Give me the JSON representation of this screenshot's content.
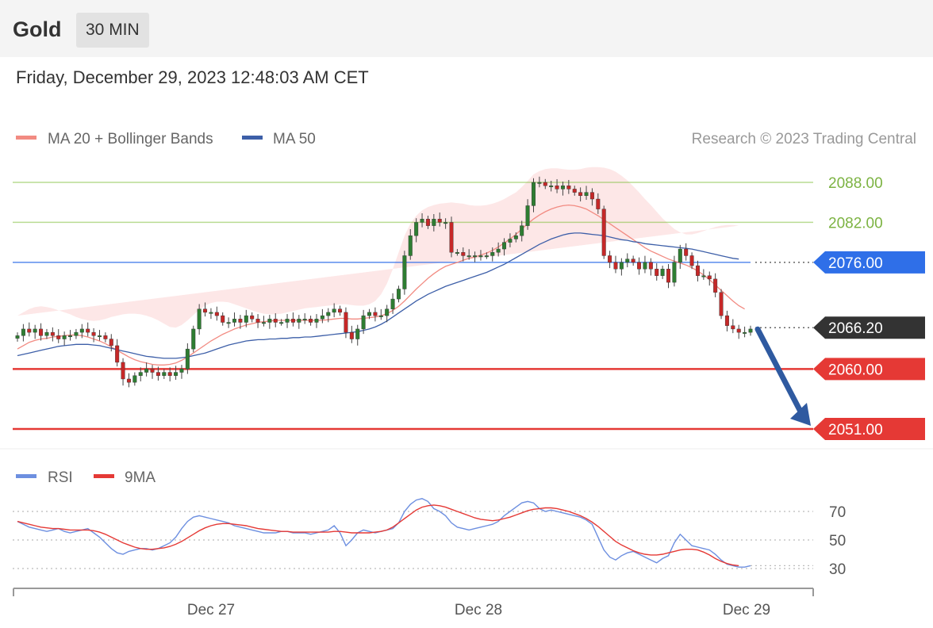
{
  "header": {
    "instrument": "Gold",
    "timeframe": "30 MIN",
    "datetime": "Friday, December 29, 2023 12:48:03 AM CET"
  },
  "legend": {
    "ma20": {
      "label": "MA 20 + Bollinger Bands",
      "color": "#f28b82"
    },
    "ma50": {
      "label": "MA 50",
      "color": "#3d5fa8"
    },
    "copyright": "Research © 2023 Trading Central"
  },
  "rsi_legend": {
    "rsi": {
      "label": "RSI",
      "color": "#6d8fe0"
    },
    "ma9": {
      "label": "9MA",
      "color": "#e53935"
    }
  },
  "chart_data": [
    {
      "type": "candlestick",
      "title": "Gold 30 MIN",
      "x_ticks": [
        "Dec 27",
        "Dec 28",
        "Dec 29"
      ],
      "ylim": [
        2047,
        2091
      ],
      "levels": [
        {
          "value": 2088.0,
          "label": "2088.00",
          "kind": "resistance",
          "color": "#8bc34a"
        },
        {
          "value": 2082.0,
          "label": "2082.00",
          "kind": "resistance",
          "color": "#8bc34a"
        },
        {
          "value": 2076.0,
          "label": "2076.00",
          "kind": "pivot",
          "color": "#2f6fe8"
        },
        {
          "value": 2066.2,
          "label": "2066.20",
          "kind": "last",
          "color": "#333333"
        },
        {
          "value": 2060.0,
          "label": "2060.00",
          "kind": "support",
          "color": "#e53935"
        },
        {
          "value": 2051.0,
          "label": "2051.00",
          "kind": "support",
          "color": "#e53935"
        }
      ],
      "forecast": {
        "from": 2066.2,
        "to": 2051.0,
        "direction": "down",
        "color": "#2f5aa0"
      },
      "colors": {
        "up": "#2e7d32",
        "down": "#c62828",
        "band": "#fde3e3",
        "grid": "#dddddd"
      },
      "closes": [
        2065,
        2066,
        2065.5,
        2066,
        2065,
        2065.5,
        2065,
        2064.5,
        2065,
        2065,
        2065.5,
        2066,
        2065.5,
        2065,
        2065,
        2064.5,
        2063.5,
        2061,
        2058.5,
        2058,
        2059,
        2059.5,
        2060,
        2059.5,
        2059,
        2059.5,
        2059,
        2059.5,
        2060,
        2063,
        2066,
        2069,
        2068.5,
        2068.5,
        2068,
        2067,
        2067,
        2067.5,
        2067,
        2068,
        2067.5,
        2067,
        2067,
        2067.5,
        2067,
        2067,
        2067.5,
        2067,
        2067.5,
        2067.5,
        2067,
        2067.5,
        2068,
        2068.5,
        2069,
        2068.5,
        2065.5,
        2064.5,
        2066,
        2068,
        2068.5,
        2068,
        2068,
        2069,
        2070.5,
        2072,
        2077,
        2080,
        2082,
        2082.5,
        2081.5,
        2082.5,
        2082,
        2082,
        2077.5,
        2077.5,
        2077,
        2077,
        2077,
        2077,
        2077,
        2077.5,
        2078,
        2079,
        2079.5,
        2080,
        2081.5,
        2084.5,
        2088,
        2088,
        2087.5,
        2087.5,
        2087,
        2087.5,
        2087,
        2086.5,
        2086,
        2086.5,
        2085.5,
        2084,
        2077,
        2076,
        2075,
        2076,
        2076.5,
        2076,
        2075,
        2076,
        2075,
        2074,
        2075,
        2073,
        2076,
        2078,
        2077,
        2075.5,
        2074,
        2074,
        2073.5,
        2071.5,
        2068,
        2066.5,
        2066,
        2065.5,
        2065.5,
        2066
      ],
      "ma20": [
        2063,
        2063.5,
        2064,
        2064.3,
        2064.5,
        2064.6,
        2064.8,
        2064.9,
        2065,
        2065.1,
        2065.1,
        2065,
        2064.8,
        2064.5,
        2064.2,
        2063.8,
        2063.3,
        2062.8,
        2062.3,
        2061.8,
        2061.4,
        2061.1,
        2060.9,
        2060.7,
        2060.6,
        2060.6,
        2060.7,
        2060.9,
        2061.3,
        2061.8,
        2062.4,
        2063,
        2063.6,
        2064.2,
        2064.7,
        2065.2,
        2065.6,
        2066,
        2066.3,
        2066.6,
        2066.8,
        2067,
        2067.1,
        2067.2,
        2067.3,
        2067.3,
        2067.3,
        2067.3,
        2067.3,
        2067.3,
        2067.3,
        2067.3,
        2067.3,
        2067.4,
        2067.5,
        2067.6,
        2067.6,
        2067.5,
        2067.5,
        2067.6,
        2067.7,
        2067.8,
        2068,
        2068.3,
        2068.8,
        2069.4,
        2070.2,
        2071.1,
        2072,
        2072.8,
        2073.6,
        2074.3,
        2074.9,
        2075.4,
        2075.7,
        2076,
        2076.3,
        2076.6,
        2076.8,
        2077.1,
        2077.4,
        2077.8,
        2078.3,
        2078.9,
        2079.5,
        2080.2,
        2081,
        2081.8,
        2082.5,
        2083.1,
        2083.6,
        2084,
        2084.3,
        2084.5,
        2084.6,
        2084.5,
        2084.3,
        2084,
        2083.5,
        2083,
        2082.4,
        2081.8,
        2081.2,
        2080.6,
        2080,
        2079.4,
        2078.8,
        2078.2,
        2077.7,
        2077.3,
        2076.9,
        2076.5,
        2076.2,
        2075.9,
        2075.6,
        2075.2,
        2074.7,
        2074.1,
        2073.4,
        2072.6,
        2071.8,
        2071,
        2070.2,
        2069.5,
        2069
      ],
      "ma50": [
        2062,
        2062.2,
        2062.4,
        2062.6,
        2062.8,
        2063,
        2063.2,
        2063.4,
        2063.5,
        2063.6,
        2063.7,
        2063.7,
        2063.7,
        2063.6,
        2063.5,
        2063.3,
        2063.1,
        2062.9,
        2062.7,
        2062.5,
        2062.3,
        2062.1,
        2061.9,
        2061.8,
        2061.7,
        2061.6,
        2061.6,
        2061.6,
        2061.7,
        2061.8,
        2062,
        2062.2,
        2062.4,
        2062.7,
        2063,
        2063.3,
        2063.6,
        2063.8,
        2064,
        2064.2,
        2064.3,
        2064.4,
        2064.4,
        2064.5,
        2064.5,
        2064.6,
        2064.6,
        2064.7,
        2064.7,
        2064.8,
        2064.8,
        2064.9,
        2065,
        2065.1,
        2065.2,
        2065.3,
        2065.4,
        2065.5,
        2065.6,
        2065.8,
        2066,
        2066.3,
        2066.7,
        2067.2,
        2067.8,
        2068.4,
        2069,
        2069.6,
        2070.2,
        2070.7,
        2071.2,
        2071.6,
        2072,
        2072.4,
        2072.7,
        2073,
        2073.3,
        2073.6,
        2073.9,
        2074.2,
        2074.5,
        2074.9,
        2075.3,
        2075.7,
        2076.2,
        2076.7,
        2077.2,
        2077.7,
        2078.2,
        2078.7,
        2079.1,
        2079.5,
        2079.8,
        2080.1,
        2080.3,
        2080.4,
        2080.4,
        2080.3,
        2080.2,
        2080.1,
        2080,
        2079.8,
        2079.6,
        2079.4,
        2079.3,
        2079.1,
        2079,
        2078.8,
        2078.7,
        2078.6,
        2078.5,
        2078.4,
        2078.3,
        2078.2,
        2078.1,
        2078,
        2077.8,
        2077.6,
        2077.4,
        2077.2,
        2077,
        2076.8,
        2076.6,
        2076.5
      ],
      "bb_upper": [
        2068,
        2068.5,
        2069,
        2069.3,
        2069.4,
        2069.3,
        2069.1,
        2068.8,
        2068.5,
        2068.2,
        2067.8,
        2067.5,
        2067.3,
        2067.2,
        2067.3,
        2067.5,
        2067.8,
        2068,
        2068.2,
        2068.3,
        2068.3,
        2068.2,
        2068,
        2067.7,
        2067.3,
        2066.8,
        2066.3,
        2066.2,
        2066.6,
        2067.3,
        2068.1,
        2068.9,
        2069.5,
        2069.9,
        2070.1,
        2070.1,
        2070,
        2069.7,
        2069.4,
        2069.1,
        2068.8,
        2068.5,
        2068.3,
        2068.2,
        2068.2,
        2068.3,
        2068.5,
        2068.7,
        2068.9,
        2069.1,
        2069.2,
        2069.3,
        2069.4,
        2069.5,
        2069.6,
        2069.7,
        2069.7,
        2069.6,
        2069.5,
        2069.5,
        2069.7,
        2070.2,
        2071.2,
        2072.8,
        2075,
        2077.5,
        2080,
        2081.8,
        2083,
        2083.8,
        2084.3,
        2084.6,
        2084.8,
        2084.9,
        2085,
        2084.9,
        2084.8,
        2084.6,
        2084.5,
        2084.5,
        2084.6,
        2084.8,
        2085.1,
        2085.5,
        2086,
        2086.5,
        2087.3,
        2088.2,
        2089.2,
        2089.7,
        2090,
        2090.1,
        2090.1,
        2090,
        2089.9,
        2089.9,
        2090,
        2090.2,
        2090.3,
        2090.3,
        2090.2,
        2090,
        2089.6,
        2089,
        2088.3,
        2087.4,
        2086.5,
        2085.5,
        2084.6,
        2083.6,
        2082.6,
        2081.8,
        2081,
        2080.5,
        2080.2,
        2080.2,
        2080.4,
        2080.7,
        2081,
        2081.3,
        2081.5,
        2081.6,
        2081.6,
        2081.5
      ],
      "bb_lower": [
        2052,
        2054,
        2056,
        2057.5,
        2058.5,
        2059.2,
        2059.8,
        2060.2,
        2060.5,
        2060.8,
        2061,
        2061,
        2060.8,
        2060.4,
        2059.8,
        2059,
        2058,
        2057.1,
        2056.5,
        2056.2,
        2056,
        2055.9,
        2055.8,
        2055.8,
        2056,
        2056.3,
        2056.8,
        2057.5,
        2057.5,
        2056.8,
        2056.2,
        2056,
        2056.2,
        2056.9,
        2057.7,
        2058.6,
        2059.5,
        2060.3,
        2061,
        2061.6,
        2062.1,
        2062.4,
        2062.6,
        2062.8,
        2062.9,
        2063,
        2063,
        2063,
        2063,
        2063,
        2063,
        2063,
        2063,
        2063,
        2063,
        2063.1,
        2063.1,
        2063.1,
        2063.1,
        2063.2,
        2063.3,
        2063.4,
        2063.5,
        2063.4,
        2063,
        2062.2,
        2061.3,
        2060.6,
        2060,
        2059.8,
        2059.7,
        2059.8,
        2060,
        2060.5,
        2061.3,
        2062.3,
        2063.6,
        2065,
        2066.5,
        2068,
        2069.4,
        2070.5,
        2071.5,
        2072.3,
        2073,
        2073.6,
        2074.1,
        2074.5,
        2075,
        2075.5,
        2075.8,
        2076,
        2076,
        2075.8,
        2075.4,
        2074.8,
        2074.1,
        2073.3,
        2072.4,
        2071.5,
        2070.6,
        2069.8,
        2069.3,
        2069,
        2069,
        2069.2,
        2069.5,
        2069.8,
        2070.1,
        2070.3,
        2070.4,
        2070.4,
        2070.2,
        2069.8,
        2069.2,
        2068.3,
        2067.2,
        2066,
        2064.8,
        2063.8,
        2063,
        2062.5,
        2062.3,
        2062.4
      ]
    },
    {
      "type": "line",
      "title": "RSI",
      "y_ticks": [
        70,
        50,
        30
      ],
      "ylim": [
        15,
        85
      ],
      "series": [
        {
          "name": "RSI",
          "values": [
            63,
            61,
            59,
            58,
            57,
            56,
            57,
            58,
            56,
            55,
            56,
            57,
            58,
            55,
            52,
            48,
            44,
            41,
            40,
            42,
            43,
            44,
            44,
            43,
            44,
            46,
            48,
            52,
            58,
            63,
            66,
            67,
            66,
            65,
            64,
            63,
            62,
            60,
            59,
            58,
            57,
            56,
            55,
            55,
            55,
            56,
            56,
            55,
            55,
            55,
            54,
            55,
            56,
            57,
            60,
            55,
            46,
            50,
            55,
            57,
            56,
            55,
            56,
            57,
            58,
            62,
            70,
            75,
            78,
            79,
            77,
            72,
            70,
            67,
            62,
            59,
            58,
            57,
            58,
            59,
            60,
            61,
            63,
            67,
            70,
            73,
            76,
            77,
            76,
            72,
            70,
            71,
            70,
            69,
            68,
            67,
            66,
            64,
            61,
            52,
            43,
            38,
            36,
            39,
            41,
            42,
            40,
            38,
            36,
            34,
            37,
            39,
            48,
            54,
            50,
            46,
            45,
            44,
            43,
            40,
            36,
            33,
            32,
            31,
            31,
            32
          ]
        },
        {
          "name": "9MA",
          "values": [
            63,
            62,
            61,
            60,
            59,
            58.5,
            58,
            58,
            57.5,
            57,
            57,
            57,
            57,
            56.5,
            55.5,
            54,
            52,
            50,
            48,
            46.5,
            45,
            44,
            43.5,
            43.5,
            44,
            44.5,
            45.5,
            47,
            49,
            51.5,
            54,
            56.5,
            58.5,
            60,
            61,
            61.5,
            61.5,
            61,
            60.5,
            60,
            59,
            58,
            57.5,
            57,
            56.5,
            56,
            56,
            55.5,
            55.5,
            55.5,
            55.5,
            55.5,
            55.5,
            55.5,
            56,
            56,
            55.5,
            55,
            55,
            55,
            55,
            55.5,
            56,
            57,
            59,
            62,
            65,
            68,
            71,
            73,
            74,
            74.5,
            74,
            73,
            71.5,
            70,
            68.5,
            67,
            65.5,
            64.5,
            64,
            63.5,
            64,
            65,
            66,
            67.5,
            69,
            70.5,
            71.5,
            72,
            72.5,
            72.5,
            72,
            71,
            70,
            68.5,
            67,
            65,
            62.5,
            59.5,
            56,
            52.5,
            49,
            46.5,
            44.5,
            42.5,
            41,
            40,
            39.5,
            39.5,
            40,
            41,
            42,
            43,
            43.5,
            43.5,
            43,
            41.5,
            39.5,
            37,
            35,
            33.5,
            32.5,
            32
          ]
        }
      ]
    }
  ]
}
